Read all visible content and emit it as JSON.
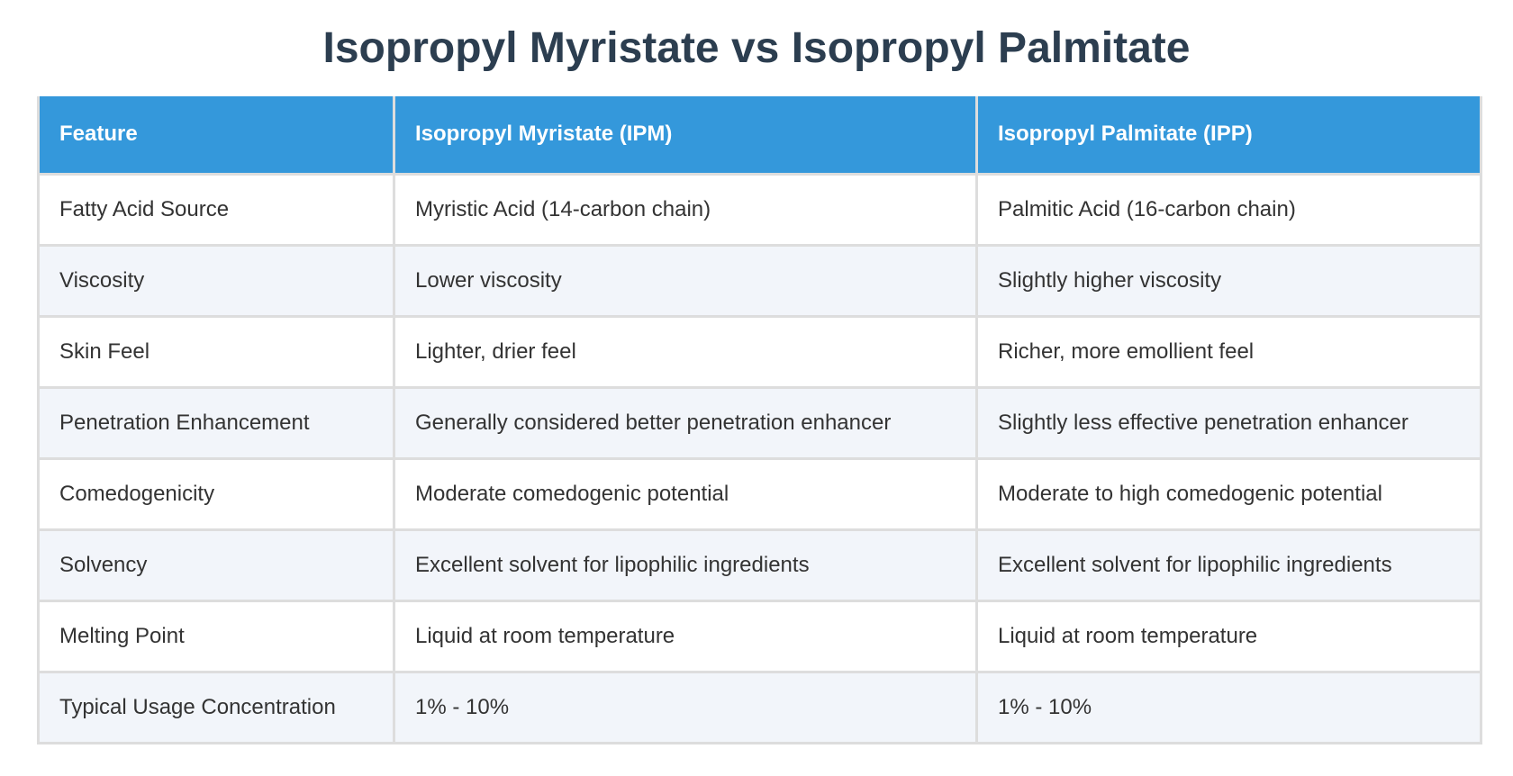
{
  "title": "Isopropyl Myristate vs Isopropyl Palmitate",
  "table": {
    "headers": [
      "Feature",
      "Isopropyl Myristate (IPM)",
      "Isopropyl Palmitate (IPP)"
    ],
    "rows": [
      [
        "Fatty Acid Source",
        "Myristic Acid (14-carbon chain)",
        "Palmitic Acid (16-carbon chain)"
      ],
      [
        "Viscosity",
        "Lower viscosity",
        "Slightly higher viscosity"
      ],
      [
        "Skin Feel",
        "Lighter, drier feel",
        "Richer, more emollient feel"
      ],
      [
        "Penetration Enhancement",
        "Generally considered better penetration enhancer",
        "Slightly less effective penetration enhancer"
      ],
      [
        "Comedogenicity",
        "Moderate comedogenic potential",
        "Moderate to high comedogenic potential"
      ],
      [
        "Solvency",
        "Excellent solvent for lipophilic ingredients",
        "Excellent solvent for lipophilic ingredients"
      ],
      [
        "Melting Point",
        "Liquid at room temperature",
        "Liquid at room temperature"
      ],
      [
        "Typical Usage Concentration",
        "1% - 10%",
        "1% - 10%"
      ]
    ]
  },
  "colors": {
    "header_bg": "#3498db",
    "title": "#2c3e50",
    "stripe": "#f2f5fa",
    "border": "#dddddd"
  }
}
